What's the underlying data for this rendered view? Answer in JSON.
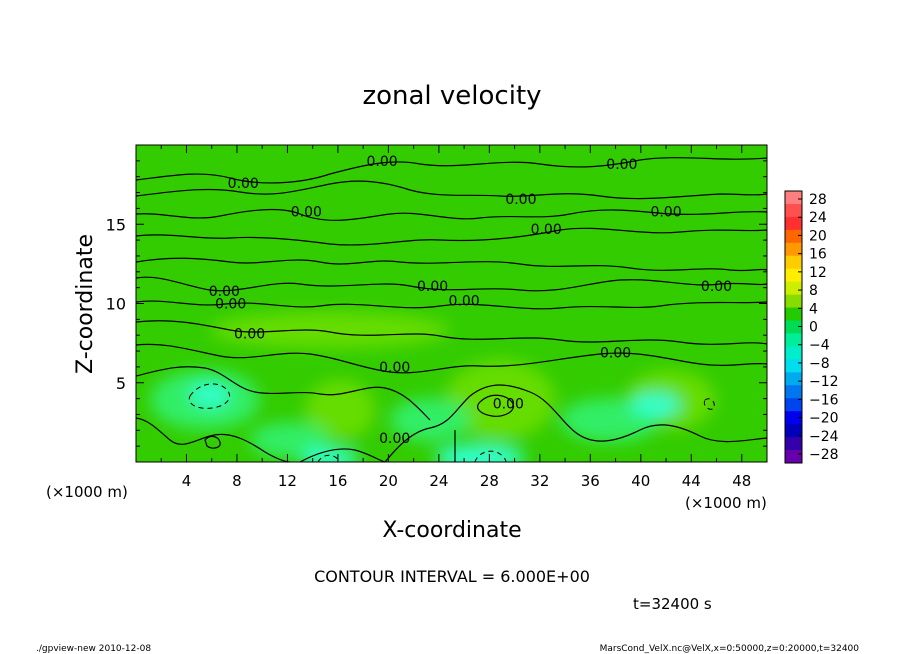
{
  "chart_data": {
    "type": "heatmap",
    "title": "zonal velocity",
    "xlabel": "X-coordinate",
    "ylabel": "Z-coordinate",
    "x_unit": "(×1000 m)",
    "y_unit": "(×1000 m)",
    "xlim": [
      0,
      50
    ],
    "ylim": [
      0,
      20
    ],
    "x_ticks": [
      "4",
      "8",
      "12",
      "16",
      "20",
      "24",
      "28",
      "32",
      "36",
      "40",
      "44",
      "48"
    ],
    "y_ticks": [
      "5",
      "10",
      "15"
    ],
    "contour_interval_text": "CONTOUR INTERVAL = 6.000E+00",
    "contour_labels": [
      {
        "text": "0.00",
        "x": 19.5,
        "z": 19.0
      },
      {
        "text": "0.00",
        "x": 38.5,
        "z": 18.8
      },
      {
        "text": "0.00",
        "x": 8.5,
        "z": 17.6
      },
      {
        "text": "0.00",
        "x": 30.5,
        "z": 16.6
      },
      {
        "text": "0.00",
        "x": 13.5,
        "z": 15.8
      },
      {
        "text": "0.00",
        "x": 42.0,
        "z": 15.8
      },
      {
        "text": "0.00",
        "x": 32.5,
        "z": 14.7
      },
      {
        "text": "0.00",
        "x": 23.5,
        "z": 11.1
      },
      {
        "text": "0.00",
        "x": 46.0,
        "z": 11.1
      },
      {
        "text": "0.00",
        "x": 7.0,
        "z": 10.8
      },
      {
        "text": "0.00",
        "x": 26.0,
        "z": 10.2
      },
      {
        "text": "0.00",
        "x": 7.5,
        "z": 10.0
      },
      {
        "text": "0.00",
        "x": 9.0,
        "z": 8.1
      },
      {
        "text": "0.00",
        "x": 38.0,
        "z": 6.9
      },
      {
        "text": "0.00",
        "x": 20.5,
        "z": 6.0
      },
      {
        "text": "0.00",
        "x": 29.5,
        "z": 3.7
      },
      {
        "text": "0.00",
        "x": 20.5,
        "z": 1.5
      }
    ],
    "colorbar": {
      "labels": [
        "28",
        "24",
        "20",
        "16",
        "12",
        "8",
        "4",
        "0",
        "−4",
        "−8",
        "−12",
        "−16",
        "−20",
        "−24",
        "−28"
      ],
      "colors": [
        "#ff7f7f",
        "#ff5050",
        "#ff3030",
        "#ff6600",
        "#ff9900",
        "#ffcc00",
        "#ffee00",
        "#ccee00",
        "#88dd00",
        "#22cc00",
        "#00dd55",
        "#00ee99",
        "#00eecc",
        "#00ddee",
        "#00aaee",
        "#0077ee",
        "#0044ee",
        "#0000ee",
        "#0000bb",
        "#3300aa",
        "#6600aa"
      ]
    },
    "colors": {
      "field_main": "#33cc00",
      "field_light": "#66dd00",
      "field_cool": "#33ee66",
      "field_cyan": "#33ffcc"
    }
  },
  "time_label": "t=32400 s",
  "footer": {
    "left": "./gpview-new  2010-12-08",
    "right": "MarsCond_VelX.nc@VelX,x=0:50000,z=0:20000,t=32400"
  }
}
